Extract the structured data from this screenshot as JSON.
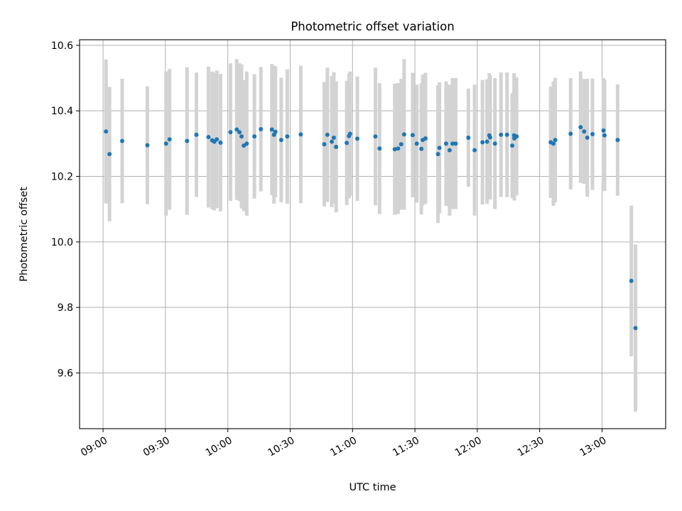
{
  "chart_data": {
    "type": "scatter",
    "title": "Photometric offset variation",
    "xlabel": "UTC time",
    "ylabel": "Photometric offset",
    "x_ticks": [
      "09:00",
      "09:30",
      "10:00",
      "10:30",
      "11:00",
      "11:30",
      "12:00",
      "12:30",
      "13:00"
    ],
    "y_ticks": [
      "9.6",
      "9.8",
      "10.0",
      "10.2",
      "10.4",
      "10.6"
    ],
    "x_unit": "minutes after 09:00 UTC",
    "xlim": [
      -11.3,
      270.6
    ],
    "ylim": [
      9.43,
      10.617
    ],
    "grid": true,
    "marker_color": "#1f77b4",
    "errorbar_color": "#d3d3d3",
    "series": [
      {
        "x": [
          1.4,
          3.1,
          9.2,
          21.3,
          30.3,
          32.0,
          40.4,
          44.9,
          50.7,
          52.5,
          53.5,
          54.7,
          56.5,
          61.3,
          64.3,
          65.6,
          66.6,
          67.7,
          69.1,
          72.8,
          75.9,
          81.2,
          82.2,
          82.9,
          85.7,
          88.6,
          95.1,
          106.4,
          107.9,
          110.0,
          111.0,
          112.1,
          117.2,
          118.3,
          118.8,
          122.3,
          131.0,
          133.0,
          140.3,
          141.9,
          143.4,
          144.8,
          148.9,
          150.9,
          153.1,
          153.8,
          155.1,
          161.1,
          161.8,
          165.0,
          166.7,
          168.1,
          169.6,
          175.7,
          178.7,
          182.5,
          184.7,
          185.8,
          186.2,
          188.5,
          191.4,
          194.3,
          196.8,
          197.7,
          197.8,
          198.9,
          215.3,
          216.6,
          217.5,
          224.9,
          229.7,
          231.4,
          232.9,
          235.4,
          240.7,
          241.2,
          247.5,
          254.1,
          256.1
        ],
        "y": [
          10.337,
          10.268,
          10.308,
          10.295,
          10.3,
          10.313,
          10.308,
          10.327,
          10.32,
          10.31,
          10.306,
          10.313,
          10.303,
          10.335,
          10.343,
          10.335,
          10.322,
          10.294,
          10.3,
          10.322,
          10.344,
          10.343,
          10.327,
          10.336,
          10.311,
          10.322,
          10.328,
          10.298,
          10.327,
          10.306,
          10.318,
          10.29,
          10.302,
          10.323,
          10.33,
          10.315,
          10.322,
          10.285,
          10.283,
          10.285,
          10.298,
          10.328,
          10.326,
          10.3,
          10.284,
          10.311,
          10.316,
          10.268,
          10.287,
          10.3,
          10.28,
          10.3,
          10.3,
          10.318,
          10.28,
          10.304,
          10.306,
          10.325,
          10.319,
          10.3,
          10.327,
          10.327,
          10.294,
          10.325,
          10.316,
          10.322,
          10.304,
          10.3,
          10.311,
          10.33,
          10.35,
          10.337,
          10.318,
          10.329,
          10.34,
          10.325,
          10.311,
          9.881,
          9.737
        ],
        "yerr": [
          0.22,
          0.205,
          0.19,
          0.18,
          0.22,
          0.215,
          0.225,
          0.19,
          0.215,
          0.21,
          0.21,
          0.21,
          0.21,
          0.21,
          0.215,
          0.21,
          0.22,
          0.2,
          0.22,
          0.19,
          0.19,
          0.2,
          0.21,
          0.2,
          0.19,
          0.205,
          0.21,
          0.19,
          0.205,
          0.2,
          0.2,
          0.2,
          0.19,
          0.19,
          0.19,
          0.19,
          0.21,
          0.2,
          0.2,
          0.2,
          0.2,
          0.23,
          0.19,
          0.18,
          0.2,
          0.2,
          0.2,
          0.21,
          0.2,
          0.19,
          0.2,
          0.2,
          0.2,
          0.15,
          0.2,
          0.19,
          0.19,
          0.19,
          0.19,
          0.2,
          0.19,
          0.19,
          0.16,
          0.19,
          0.19,
          0.18,
          0.17,
          0.19,
          0.19,
          0.17,
          0.17,
          0.16,
          0.18,
          0.17,
          0.16,
          0.17,
          0.17,
          0.23,
          0.255
        ]
      }
    ]
  }
}
